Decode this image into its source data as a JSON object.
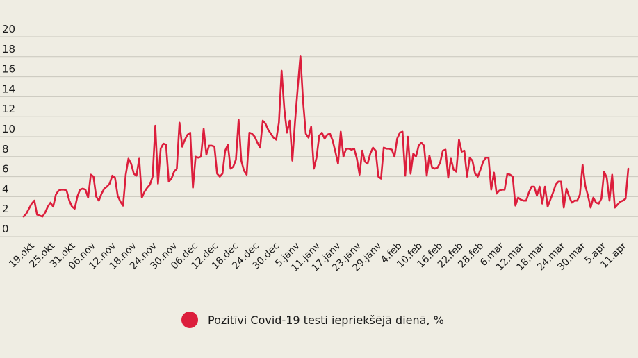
{
  "chart_data": {
    "type": "line",
    "ylim": [
      0,
      20
    ],
    "y_ticks": [
      "0",
      "2",
      "4",
      "6",
      "8",
      "10",
      "12",
      "14",
      "16",
      "18",
      "20"
    ],
    "x_tick_labels": [
      "19.okt",
      "25.okt",
      "31.okt",
      "06.nov",
      "12.nov",
      "18.nov",
      "24.nov",
      "30.nov",
      "06.dec",
      "12.dec",
      "18.dec",
      "24.dec",
      "30.dec",
      "5.janv",
      "11.janv",
      "17.janv",
      "23.janv",
      "29.janv",
      "4.feb",
      "10.feb",
      "16.feb",
      "22.feb",
      "28.feb",
      "6.mar",
      "12.mar",
      "18.mar",
      "24.mar",
      "30.mar",
      "5.apr",
      "11.apr"
    ],
    "grid": "horizontal",
    "legend_position": "bottom-center",
    "series": [
      {
        "name": "Pozitīvi Covid-19 testi iepriekšējā dienā, %",
        "color": "#dc1e3c",
        "values": [
          2.0,
          2.3,
          2.8,
          3.3,
          3.6,
          2.2,
          2.1,
          2.0,
          2.4,
          3.0,
          3.4,
          3.0,
          4.2,
          4.6,
          4.7,
          4.7,
          4.6,
          3.6,
          3.0,
          2.8,
          4.0,
          4.7,
          4.8,
          4.7,
          3.9,
          6.2,
          6.0,
          4.0,
          3.6,
          4.3,
          4.8,
          5.0,
          5.3,
          6.1,
          5.9,
          4.1,
          3.5,
          3.1,
          6.2,
          7.8,
          7.3,
          6.3,
          6.1,
          7.8,
          3.9,
          4.5,
          4.9,
          5.2,
          6.0,
          11.1,
          5.3,
          8.8,
          9.3,
          9.2,
          5.5,
          5.8,
          6.5,
          6.8,
          11.4,
          9.0,
          9.7,
          10.2,
          10.4,
          4.9,
          8.0,
          7.9,
          8.0,
          10.8,
          8.2,
          9.1,
          9.1,
          9.0,
          6.3,
          6.0,
          6.3,
          8.6,
          9.2,
          6.8,
          7.0,
          7.7,
          11.7,
          7.6,
          6.6,
          6.2,
          10.4,
          10.3,
          10.0,
          9.4,
          8.9,
          11.6,
          11.3,
          10.7,
          10.3,
          9.9,
          9.7,
          11.4,
          16.6,
          12.8,
          10.4,
          11.6,
          7.6,
          11.5,
          14.9,
          18.1,
          13.5,
          10.3,
          9.9,
          11.0,
          6.8,
          7.9,
          10.1,
          10.4,
          9.8,
          10.2,
          10.3,
          9.6,
          8.5,
          7.3,
          10.5,
          8.0,
          8.8,
          8.8,
          8.7,
          8.8,
          7.8,
          6.2,
          8.6,
          7.5,
          7.3,
          8.3,
          8.9,
          8.6,
          6.0,
          5.8,
          8.9,
          8.8,
          8.8,
          8.7,
          8.0,
          9.8,
          10.4,
          10.5,
          6.1,
          10.0,
          6.3,
          8.3,
          8.0,
          9.1,
          9.4,
          9.1,
          6.1,
          8.1,
          6.9,
          6.8,
          6.9,
          7.4,
          8.6,
          8.7,
          5.9,
          7.8,
          6.7,
          6.5,
          9.7,
          8.5,
          8.6,
          6.0,
          7.9,
          7.6,
          6.3,
          6.0,
          6.7,
          7.5,
          7.9,
          7.9,
          4.7,
          6.4,
          4.3,
          4.6,
          4.7,
          4.7,
          6.3,
          6.2,
          6.0,
          3.1,
          3.9,
          3.7,
          3.6,
          3.6,
          4.4,
          5.0,
          5.0,
          4.1,
          5.0,
          3.3,
          5.0,
          3.0,
          3.7,
          4.4,
          5.2,
          5.5,
          5.5,
          2.9,
          4.8,
          4.0,
          3.4,
          3.6,
          3.6,
          4.2,
          7.2,
          5.1,
          4.1,
          2.9,
          3.9,
          3.4,
          3.3,
          3.8,
          6.5,
          5.9,
          3.6,
          6.2,
          2.9,
          3.2,
          3.5,
          3.6,
          3.8,
          6.8
        ]
      }
    ]
  },
  "legend": {
    "label": "Pozitīvi Covid-19 testi iepriekšējā dienā, %",
    "color": "#dc1e3c"
  }
}
